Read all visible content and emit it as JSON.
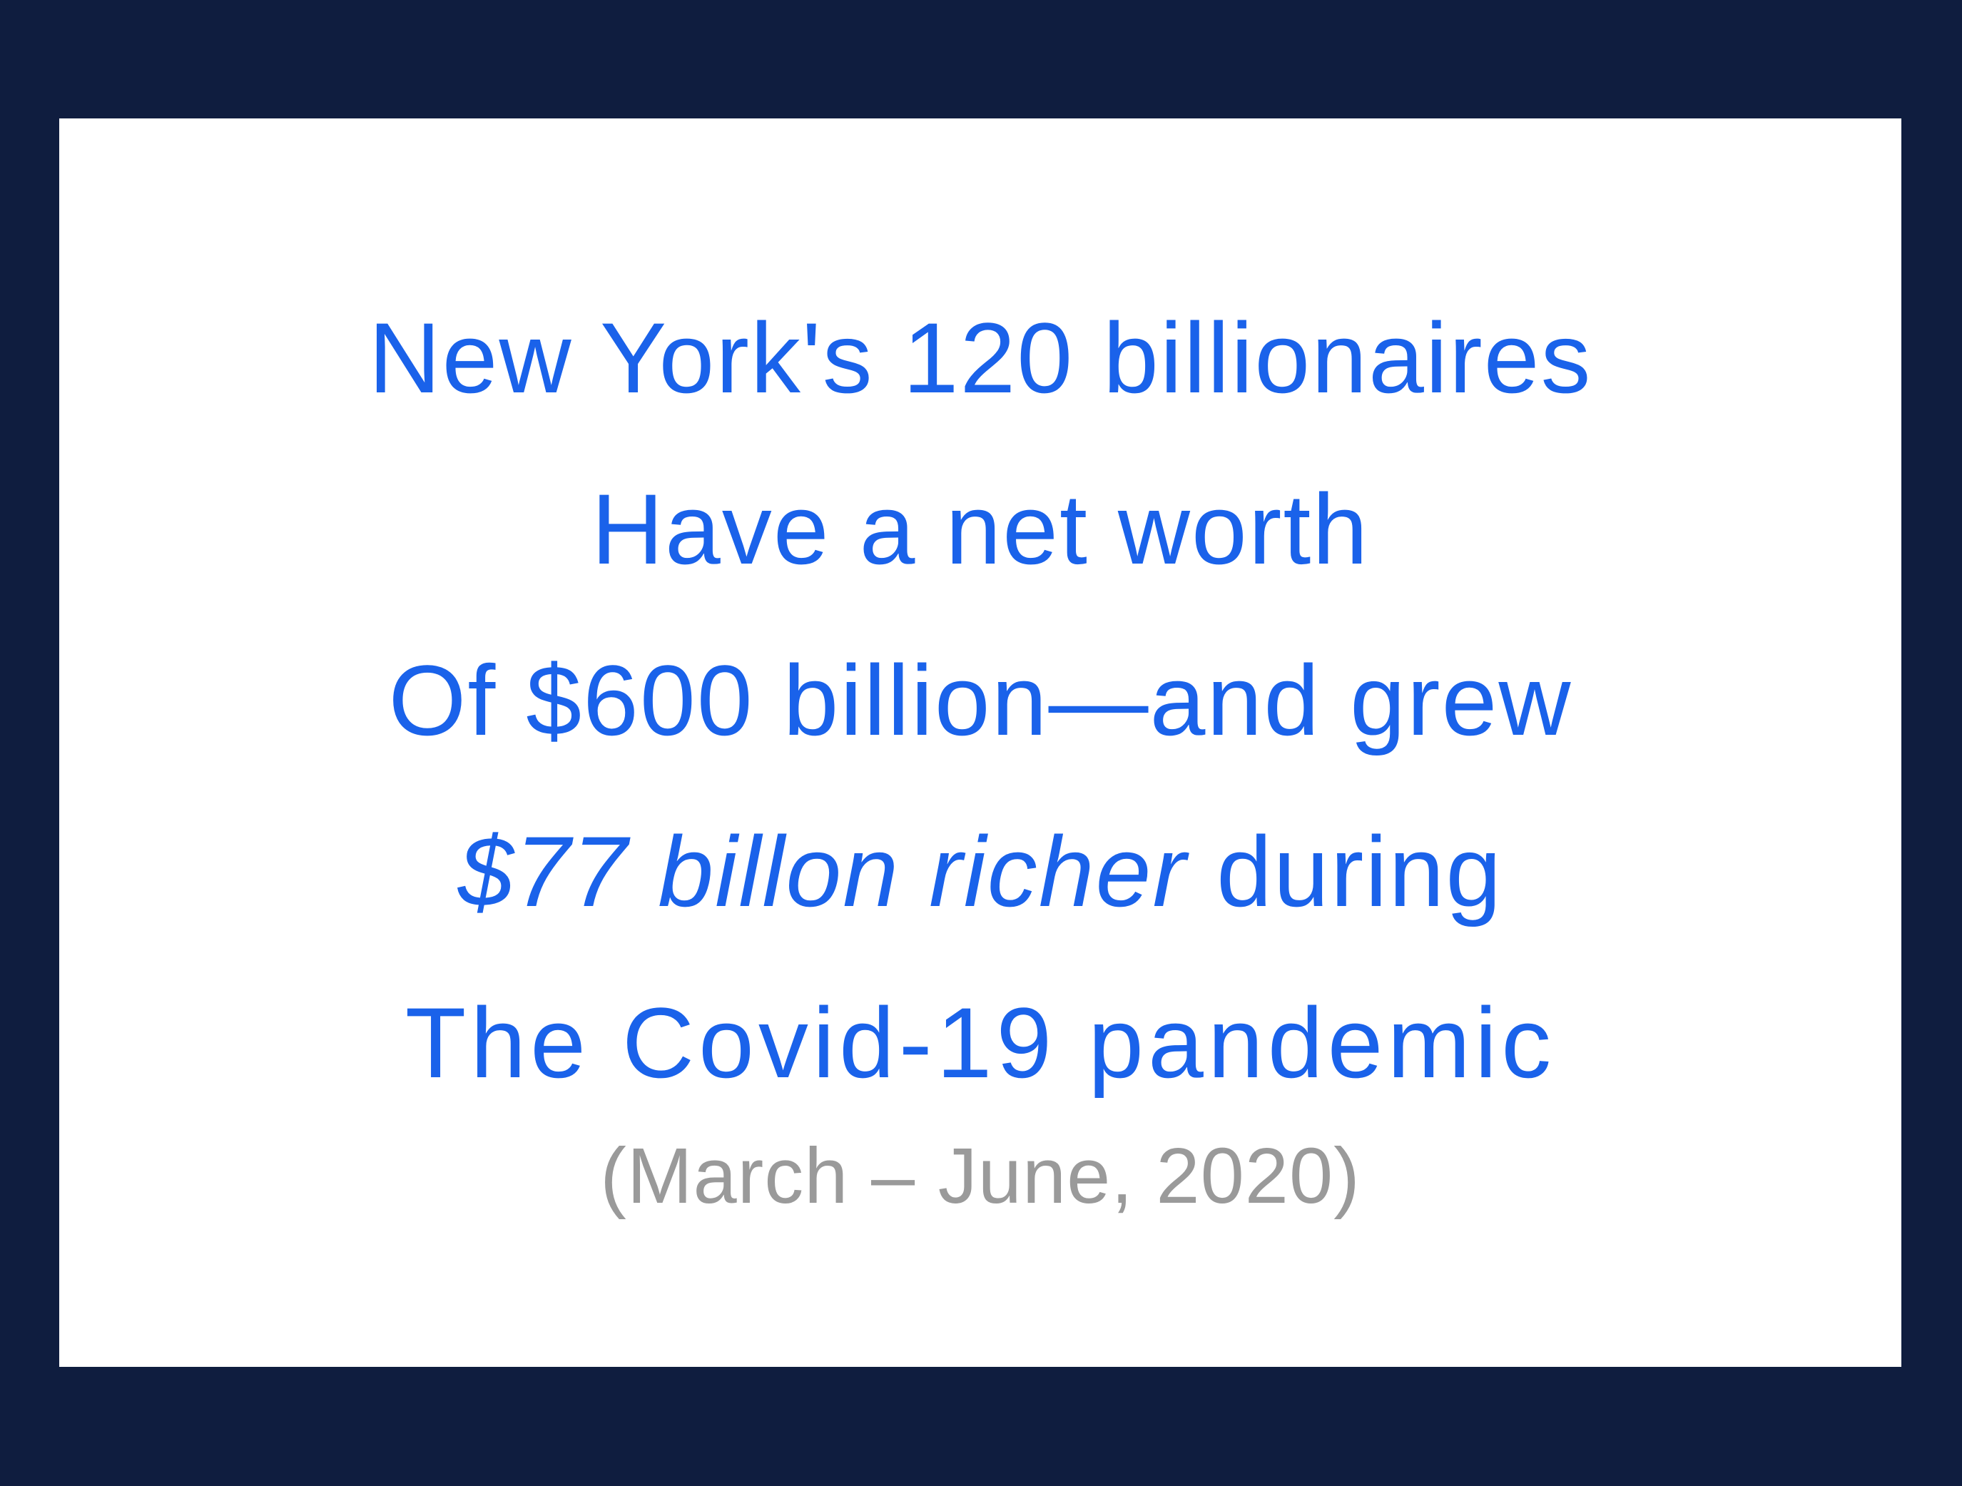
{
  "statement": {
    "line1": "New York's 120 billionaires",
    "line2": "Have a net worth",
    "line3": "Of $600 billion—and grew",
    "line4_emphasis": "$77 billon richer",
    "line4_rest": " during",
    "line5": "The Covid-19 pandemic",
    "date_range": "(March – June, 2020)"
  },
  "colors": {
    "frame": "#0f1d3f",
    "card": "#ffffff",
    "text_accent": "#1a62ea",
    "text_muted": "#9a9a9a"
  }
}
